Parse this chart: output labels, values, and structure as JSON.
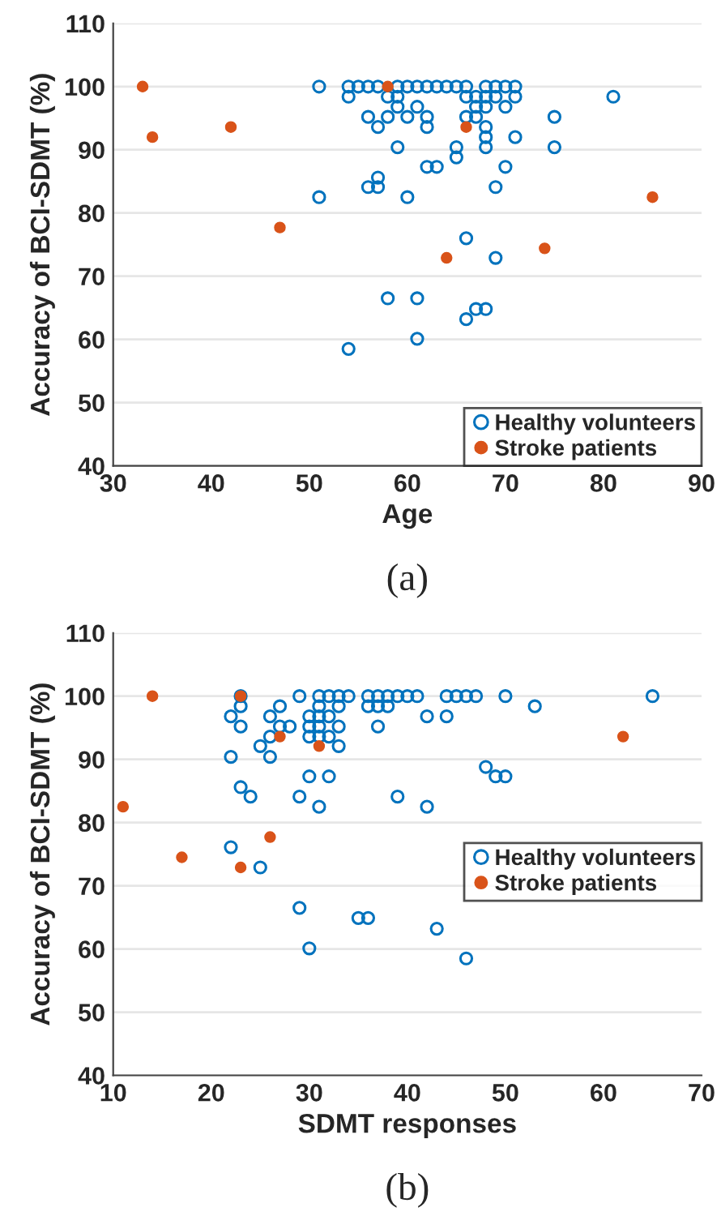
{
  "chart_data": [
    {
      "type": "scatter",
      "xlabel": "Age",
      "ylabel": "Accuracy of BCI-SDMT (%)",
      "annotations": [
        "(a)"
      ],
      "xlim": [
        30,
        90
      ],
      "xticks": [
        30,
        40,
        50,
        60,
        70,
        80,
        90
      ],
      "ylim": [
        40,
        110
      ],
      "yticks": [
        40,
        50,
        60,
        70,
        80,
        90,
        100,
        110
      ],
      "grid": "y",
      "legend": "bottom right",
      "marker": "circle",
      "series": [
        {
          "name": "Healthy volunteers",
          "color": "#0072bd",
          "x": [
            51,
            54,
            55,
            56,
            57,
            59,
            60,
            61,
            62,
            63,
            64,
            65,
            66,
            68,
            69,
            70,
            71,
            54,
            58,
            59,
            66,
            67,
            68,
            69,
            71,
            81,
            59,
            61,
            67,
            68,
            70,
            56,
            58,
            60,
            62,
            66,
            67,
            75,
            57,
            62,
            68,
            68,
            71,
            59,
            65,
            68,
            75,
            65,
            62,
            63,
            70,
            57,
            56,
            57,
            69,
            51,
            60,
            66,
            69,
            58,
            61,
            67,
            68,
            66,
            61,
            54
          ],
          "values": [
            100,
            100,
            100,
            100,
            100,
            100,
            100,
            100,
            100,
            100,
            100,
            100,
            100,
            100,
            100,
            100,
            100,
            98.4,
            98.4,
            98.4,
            98.4,
            98.4,
            98.4,
            98.4,
            98.4,
            98.4,
            96.8,
            96.8,
            96.8,
            96.8,
            96.8,
            95.2,
            95.2,
            95.2,
            95.2,
            95.2,
            95.2,
            95.2,
            93.6,
            93.6,
            93.6,
            92,
            92,
            90.4,
            90.4,
            90.4,
            90.4,
            88.8,
            87.3,
            87.3,
            87.3,
            85.6,
            84.1,
            84.1,
            84.1,
            82.5,
            82.5,
            76,
            72.9,
            66.5,
            66.5,
            64.8,
            64.8,
            63.2,
            60.1,
            58.5
          ]
        },
        {
          "name": "Stroke patients",
          "color": "#d95319",
          "x": [
            33,
            34,
            42,
            47,
            58,
            66,
            64,
            74,
            85
          ],
          "values": [
            100,
            92,
            93.6,
            77.7,
            100,
            93.6,
            72.9,
            74.4,
            82.5
          ]
        }
      ]
    },
    {
      "type": "scatter",
      "xlabel": "SDMT responses",
      "ylabel": "Accuracy of BCI-SDMT (%)",
      "annotations": [
        "(b)"
      ],
      "xlim": [
        10,
        70
      ],
      "xticks": [
        10,
        20,
        30,
        40,
        50,
        60,
        70
      ],
      "ylim": [
        40,
        110
      ],
      "yticks": [
        40,
        50,
        60,
        70,
        80,
        90,
        100,
        110
      ],
      "grid": "y",
      "legend": "right",
      "marker": "circle",
      "series": [
        {
          "name": "Healthy volunteers",
          "color": "#0072bd",
          "x": [
            23,
            29,
            31,
            32,
            33,
            34,
            36,
            37,
            38,
            39,
            40,
            41,
            44,
            45,
            46,
            47,
            50,
            65,
            23,
            27,
            31,
            33,
            36,
            37,
            38,
            53,
            22,
            26,
            30,
            31,
            32,
            42,
            44,
            23,
            27,
            28,
            30,
            31,
            33,
            37,
            26,
            30,
            31,
            32,
            25,
            33,
            22,
            26,
            48,
            30,
            32,
            49,
            50,
            23,
            24,
            29,
            39,
            31,
            42,
            22,
            25,
            29,
            35,
            36,
            43,
            30,
            46
          ],
          "values": [
            100,
            100,
            100,
            100,
            100,
            100,
            100,
            100,
            100,
            100,
            100,
            100,
            100,
            100,
            100,
            100,
            100,
            100,
            98.4,
            98.4,
            98.4,
            98.4,
            98.4,
            98.4,
            98.4,
            98.4,
            96.8,
            96.8,
            96.8,
            96.8,
            96.8,
            96.8,
            96.8,
            95.2,
            95.2,
            95.2,
            95.2,
            95.2,
            95.2,
            95.2,
            93.6,
            93.6,
            93.6,
            93.6,
            92.1,
            92.1,
            90.4,
            90.4,
            88.8,
            87.3,
            87.3,
            87.3,
            87.3,
            85.6,
            84.1,
            84.1,
            84.1,
            82.5,
            82.5,
            76.1,
            72.9,
            66.5,
            64.9,
            64.9,
            63.2,
            60.1,
            58.5
          ]
        },
        {
          "name": "Stroke patients",
          "color": "#d95319",
          "x": [
            14,
            23,
            27,
            31,
            62,
            11,
            26,
            17,
            23
          ],
          "values": [
            100,
            100,
            93.6,
            92.1,
            93.6,
            82.5,
            77.7,
            74.5,
            72.9
          ]
        }
      ]
    }
  ]
}
